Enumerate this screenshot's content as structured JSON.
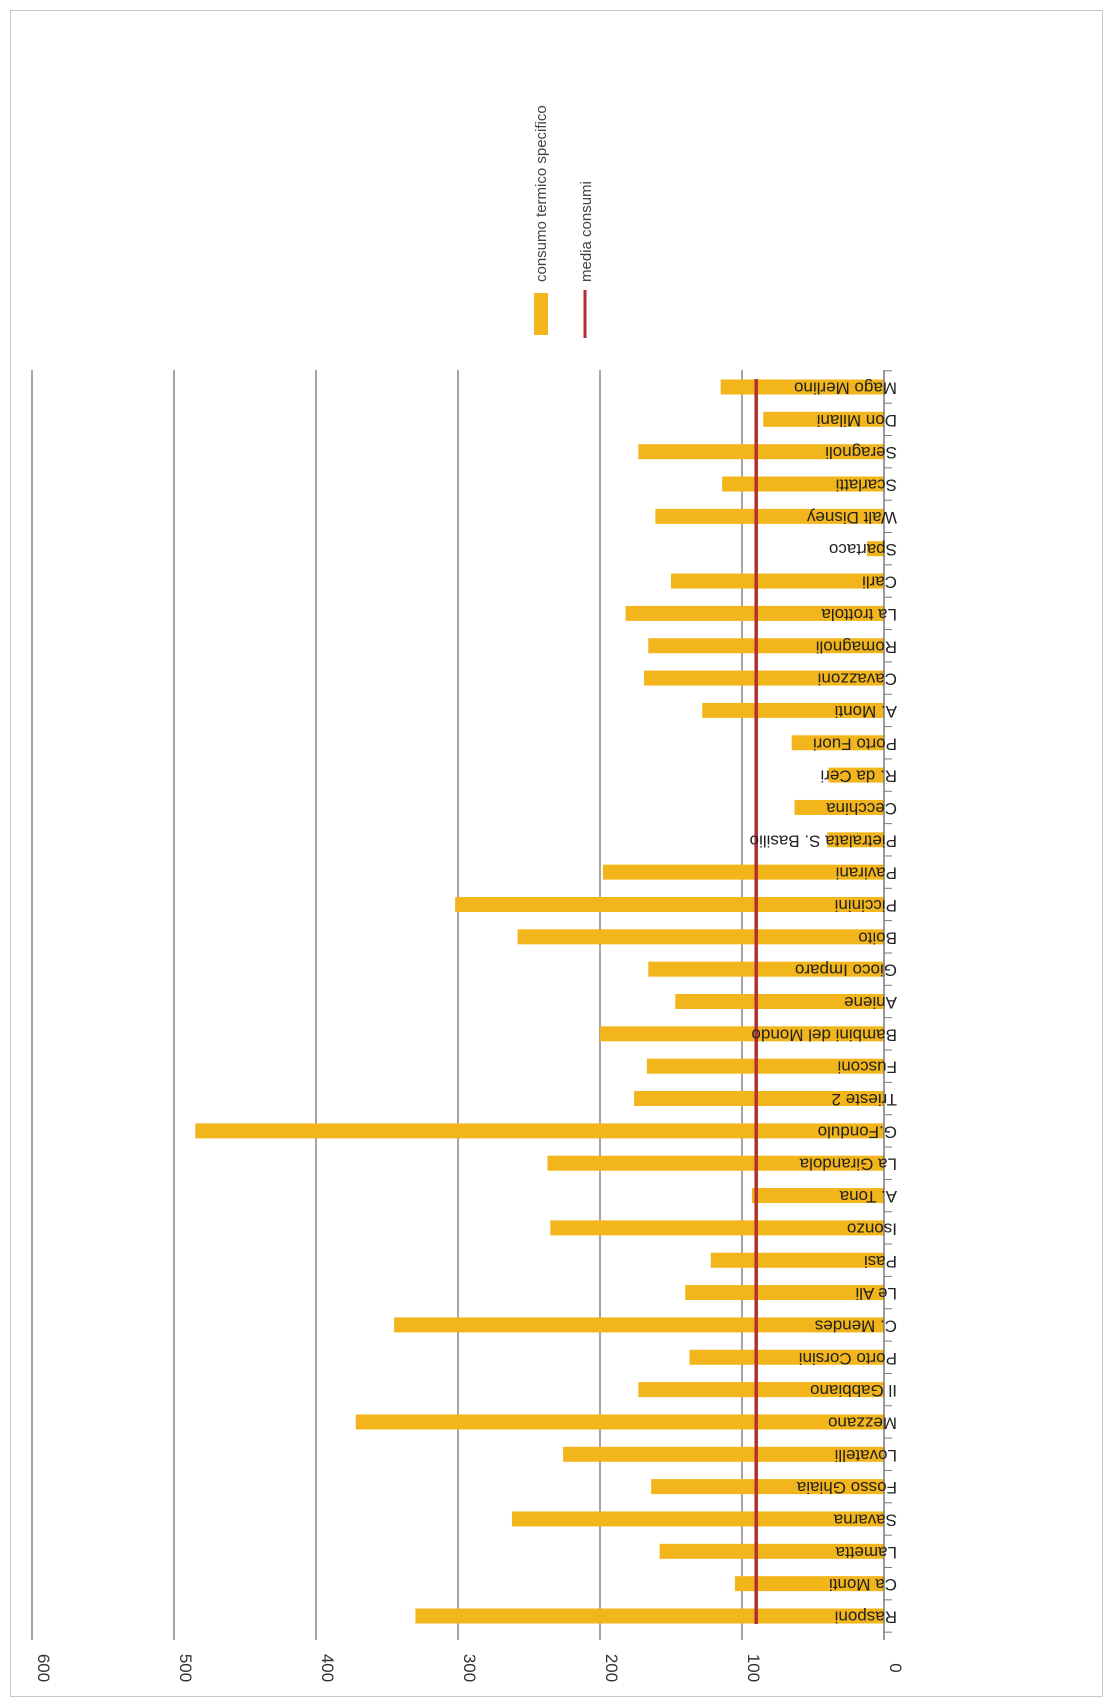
{
  "chart_data": {
    "type": "bar",
    "orientation": "rotated-180",
    "categories": [
      "Rasponi",
      "Ca Monti",
      "Lametta",
      "Savarna",
      "Fosso Ghiaia",
      "Lovatelli",
      "Mezzano",
      "Il Gabbiano",
      "Porto Corsini",
      "C. Mendes",
      "Le Ali",
      "Pasi",
      "Isonzo",
      "A. Tona",
      "La Girandola",
      "G.Fondulo",
      "Trieste 2",
      "Fusconi",
      "Bambini del Mondo",
      "Aniene",
      "Gioco Imparo",
      "Boito",
      "Piccinini",
      "Pavirani",
      "Pietralata S. Basilio",
      "Cecchina",
      "R. da Ceri",
      "Porto Fuori",
      "A. Monti",
      "Cavazzoni",
      "Romagnoli",
      "La trottola",
      "Carli",
      "Spartaco",
      "Walt Disney",
      "Scarlatti",
      "Seragnoli",
      "Don Milani",
      "Mago Merlino"
    ],
    "series": [
      {
        "name": "consumo termico specifico",
        "type": "bar",
        "color": "#f2b51b",
        "values": [
          330,
          105,
          158,
          262,
          164,
          226,
          372,
          173,
          137,
          345,
          140,
          122,
          235,
          93,
          237,
          485,
          176,
          167,
          200,
          147,
          166,
          258,
          302,
          198,
          40,
          63,
          39,
          65,
          128,
          169,
          166,
          182,
          150,
          12,
          161,
          114,
          173,
          85,
          115
        ]
      },
      {
        "name": "media consumi",
        "type": "line",
        "color": "#b32e2e",
        "value": 90
      }
    ],
    "ylim": [
      0,
      600
    ],
    "yticks": [
      0,
      100,
      200,
      300,
      400,
      500,
      600
    ],
    "grid": true,
    "legend_position": "top-right"
  }
}
